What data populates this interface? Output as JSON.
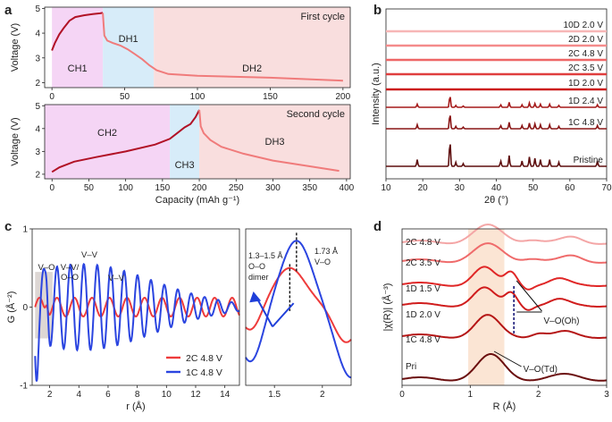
{
  "panel_letters": [
    "a",
    "b",
    "c",
    "d"
  ],
  "chart_data": [
    {
      "id": "a-top",
      "type": "line",
      "title": "First cycle",
      "ylabel": "Voltage (V)",
      "xlim": [
        -5,
        205
      ],
      "ylim": [
        1.8,
        5.05
      ],
      "yticks": [
        2,
        3,
        4,
        5
      ],
      "xticks": [
        0,
        50,
        100,
        150,
        200
      ],
      "regions": [
        {
          "label": "CH1",
          "x": [
            0,
            35
          ],
          "color": "#f5d5f5"
        },
        {
          "label": "DH1",
          "x": [
            35,
            70
          ],
          "color": "#d7ecf9"
        },
        {
          "label": "DH2",
          "x": [
            70,
            205
          ],
          "color": "#f9dede"
        }
      ],
      "series": [
        {
          "color": "#b11226",
          "x": [
            0,
            2,
            5,
            8,
            12,
            16,
            22,
            28,
            33,
            35
          ],
          "y": [
            3.3,
            3.6,
            3.95,
            4.2,
            4.5,
            4.65,
            4.72,
            4.77,
            4.8,
            4.82
          ]
        },
        {
          "color": "#f07b7b",
          "x": [
            35,
            36,
            38,
            42,
            47,
            52,
            57,
            62,
            67,
            72,
            80,
            100,
            150,
            200
          ],
          "y": [
            4.82,
            3.9,
            3.7,
            3.6,
            3.5,
            3.35,
            3.15,
            2.95,
            2.7,
            2.5,
            2.35,
            2.28,
            2.2,
            2.08
          ]
        }
      ]
    },
    {
      "id": "a-bottom",
      "type": "line",
      "title": "Second cycle",
      "xlabel": "Capacity (mAh g⁻¹)",
      "ylabel": "Voltage (V)",
      "xlim": [
        -10,
        405
      ],
      "ylim": [
        1.8,
        5.05
      ],
      "yticks": [
        2,
        3,
        4,
        5
      ],
      "xticks": [
        0,
        50,
        100,
        150,
        200,
        250,
        300,
        350,
        400
      ],
      "regions": [
        {
          "label": "CH2",
          "x": [
            -10,
            160
          ],
          "color": "#f5d5f5"
        },
        {
          "label": "CH3",
          "x": [
            160,
            200
          ],
          "color": "#d7ecf9"
        },
        {
          "label": "DH3",
          "x": [
            200,
            405
          ],
          "color": "#f9dede"
        }
      ],
      "series": [
        {
          "color": "#b11226",
          "x": [
            0,
            10,
            30,
            60,
            100,
            140,
            160,
            170,
            180,
            188,
            195,
            200
          ],
          "y": [
            2.1,
            2.3,
            2.55,
            2.75,
            3.0,
            3.3,
            3.55,
            3.8,
            4.05,
            4.2,
            4.5,
            4.82
          ]
        },
        {
          "color": "#f07b7b",
          "x": [
            200,
            202,
            206,
            215,
            230,
            260,
            300,
            350,
            390
          ],
          "y": [
            4.82,
            4.1,
            3.8,
            3.5,
            3.2,
            2.9,
            2.6,
            2.35,
            2.15
          ]
        }
      ]
    },
    {
      "id": "b",
      "type": "line",
      "xlabel": "2θ (°)",
      "ylabel": "Intensity (a.u.)",
      "xlim": [
        10,
        70
      ],
      "xticks": [
        10,
        20,
        30,
        40,
        50,
        60,
        70
      ],
      "series": [
        {
          "name": "10D 2.0 V",
          "color": "#f7b6b6"
        },
        {
          "name": "2D 2.0 V",
          "color": "#f48b8b"
        },
        {
          "name": "2C 4.8 V",
          "color": "#ee6666"
        },
        {
          "name": "2C 3.5 V",
          "color": "#e03e3e"
        },
        {
          "name": "1D 2.0 V",
          "color": "#cc1f1f"
        },
        {
          "name": "1D 2.4 V",
          "color": "#a51a1a"
        },
        {
          "name": "1C 4.8 V",
          "color": "#8a1616"
        },
        {
          "name": "Pristine",
          "color": "#5e0f0f"
        }
      ]
    },
    {
      "id": "c-left",
      "type": "line",
      "xlabel": "r (Å)",
      "ylabel": "G (Å⁻²)",
      "xlim": [
        0.8,
        15
      ],
      "ylim": [
        -1,
        1
      ],
      "xticks": [
        2,
        4,
        6,
        8,
        10,
        12,
        14
      ],
      "yticks": [
        -1,
        0,
        1
      ],
      "annotations": [
        "V–O",
        "V–V/\nO–O",
        "V–V",
        "V–V"
      ],
      "series": [
        {
          "name": "2C 4.8 V",
          "color": "#ee3b3b"
        },
        {
          "name": "1C 4.8 V",
          "color": "#2b45e0"
        }
      ]
    },
    {
      "id": "c-right",
      "type": "line",
      "xlim": [
        1.2,
        2.3
      ],
      "xticks": [
        1.5,
        2.0
      ],
      "annotations": [
        "1.3–1.5 Å",
        "O–O",
        "dimer",
        "1.73 Å",
        "V–O"
      ],
      "series": [
        {
          "name": "2C 4.8 V",
          "color": "#ee3b3b"
        },
        {
          "name": "1C 4.8 V",
          "color": "#2b45e0"
        }
      ]
    },
    {
      "id": "d",
      "type": "line",
      "xlabel": "R (Å)",
      "ylabel": "|χ(R)| (Å⁻³)",
      "xlim": [
        0,
        3
      ],
      "xticks": [
        0,
        1,
        2,
        3
      ],
      "annotations": [
        "V–O(Oh)",
        "V–O(Td)"
      ],
      "series": [
        {
          "name": "2C 4.8 V",
          "color": "#f4a6a6"
        },
        {
          "name": "2C 3.5 V",
          "color": "#ef6b6b"
        },
        {
          "name": "1D 1.5 V",
          "color": "#e02727"
        },
        {
          "name": "1D 2.0 V",
          "color": "#d01c1c"
        },
        {
          "name": "1C 4.8 V",
          "color": "#b51515"
        },
        {
          "name": "Pri",
          "color": "#6b0f0f"
        }
      ]
    }
  ]
}
